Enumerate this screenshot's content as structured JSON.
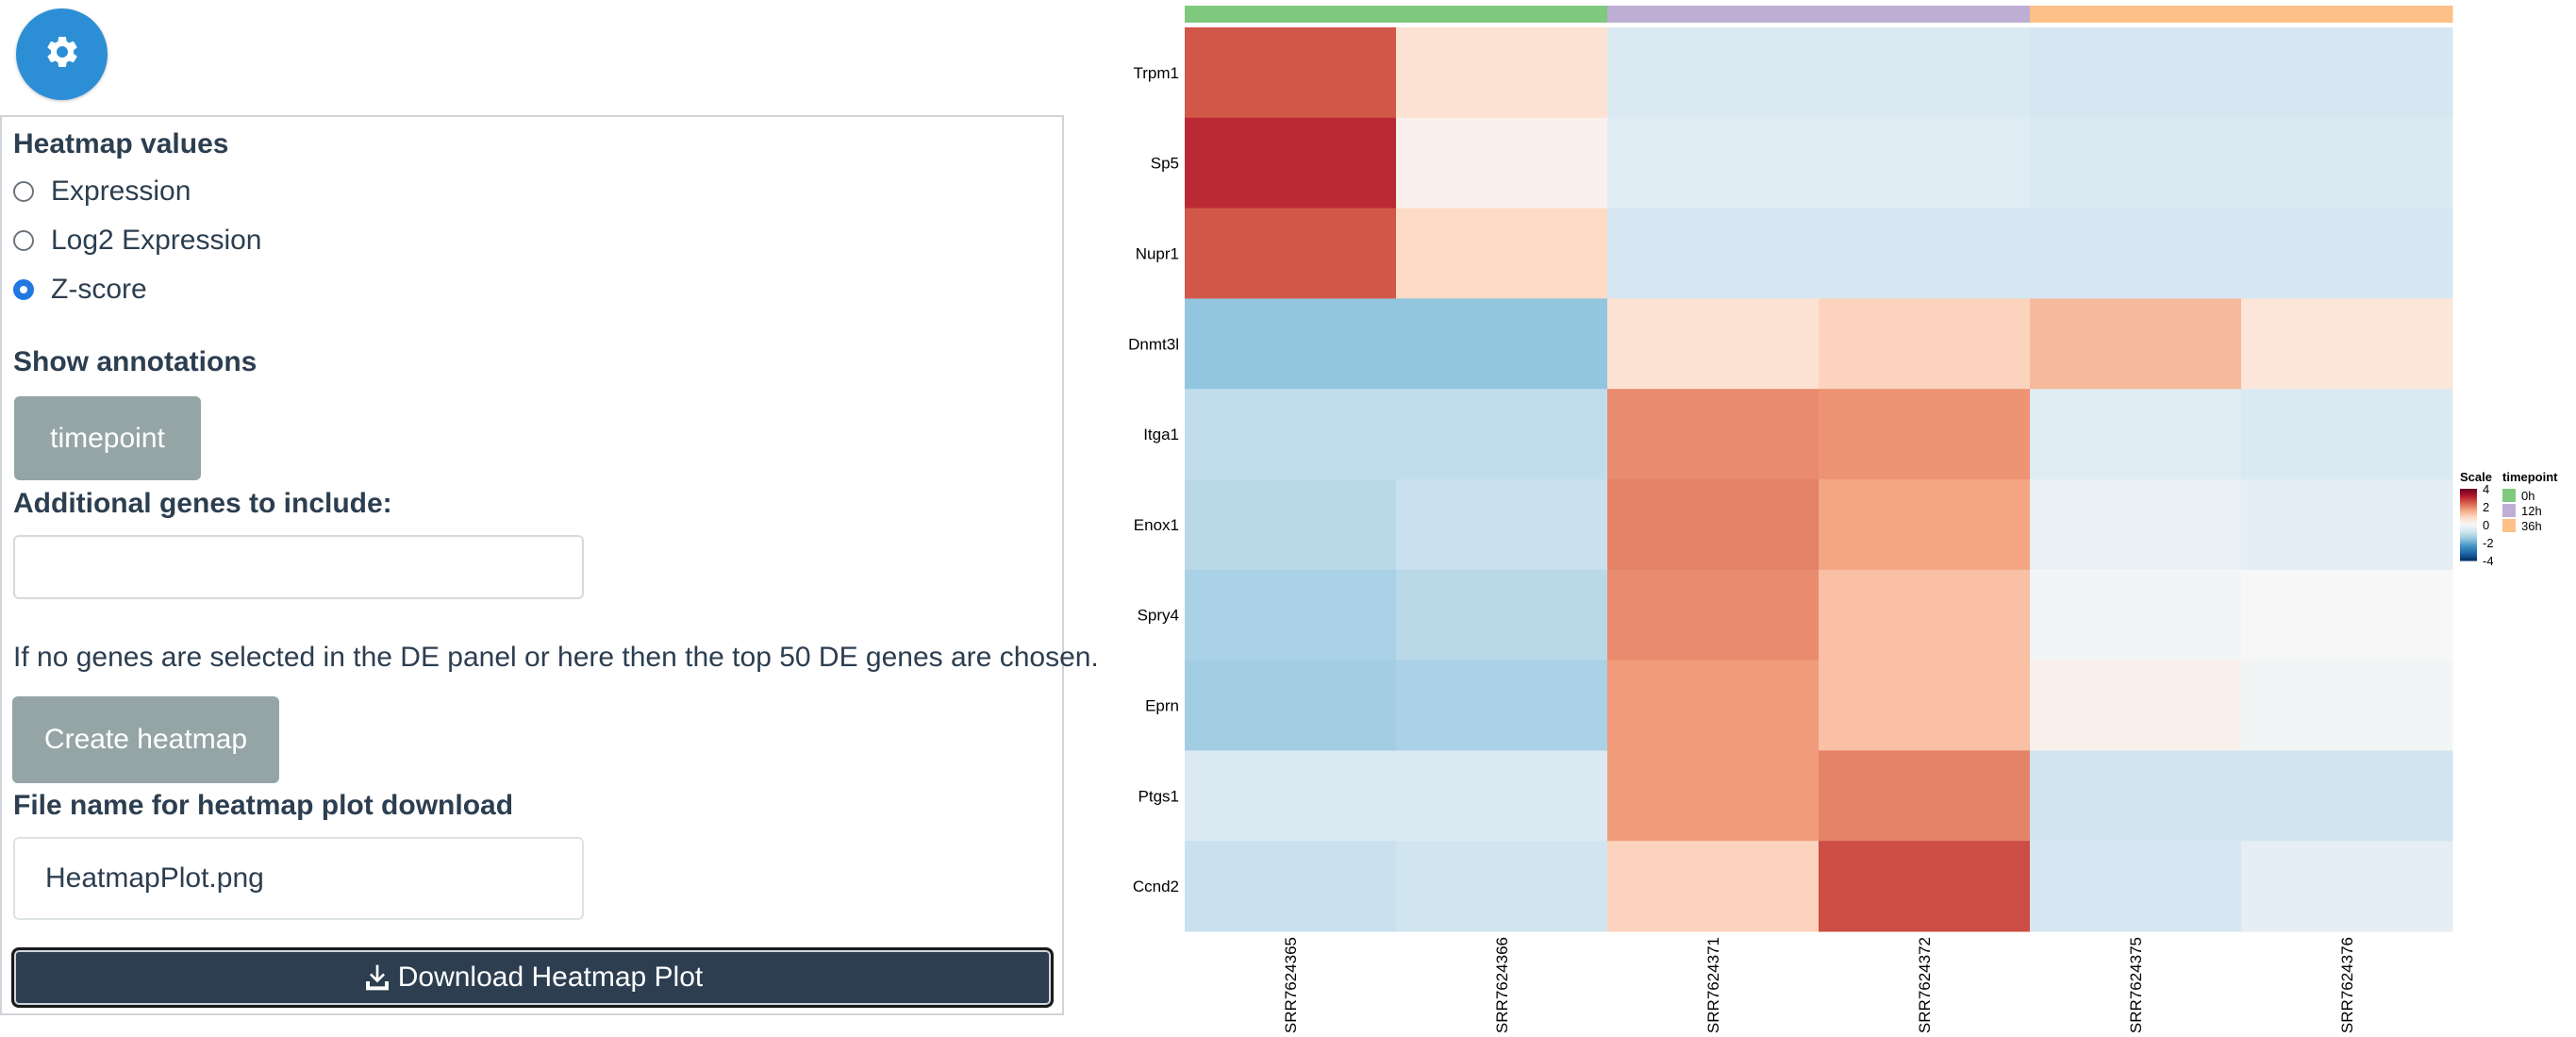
{
  "settings_button": {
    "icon": "gear-icon"
  },
  "controls": {
    "heatmap_values": {
      "title": "Heatmap values",
      "options": [
        {
          "label": "Expression",
          "checked": false
        },
        {
          "label": "Log2 Expression",
          "checked": false
        },
        {
          "label": "Z-score",
          "checked": true
        }
      ]
    },
    "annotations": {
      "title": "Show annotations",
      "button_label": "timepoint"
    },
    "additional_genes": {
      "label": "Additional genes to include:",
      "value": ""
    },
    "help_text": "If no genes are selected in the DE panel or here then the top 50 DE genes are chosen.",
    "create_button_label": "Create heatmap",
    "file_name": {
      "label": "File name for heatmap plot download",
      "value": "HeatmapPlot.png"
    },
    "download_button_label": "Download Heatmap Plot",
    "download_icon": "download-icon"
  },
  "chart_data": {
    "type": "heatmap",
    "rows": [
      "Trpm1",
      "Sp5",
      "Nupr1",
      "Dnmt3l",
      "Itga1",
      "Enox1",
      "Spry4",
      "Eprn",
      "Ptgs1",
      "Ccnd2"
    ],
    "columns": [
      "SRR7624365",
      "SRR7624366",
      "SRR7624371",
      "SRR7624372",
      "SRR7624375",
      "SRR7624376"
    ],
    "column_annotation": {
      "name": "timepoint",
      "values": [
        "0h",
        "0h",
        "12h",
        "12h",
        "36h",
        "36h"
      ],
      "colors": {
        "0h": "#7fc97f",
        "12h": "#beaed4",
        "36h": "#fdc086"
      }
    },
    "values": [
      [
        2.5,
        0.6,
        -0.6,
        -0.6,
        -0.7,
        -0.7
      ],
      [
        3.0,
        0.2,
        -0.5,
        -0.5,
        -0.6,
        -0.6
      ],
      [
        2.5,
        0.8,
        -0.7,
        -0.7,
        -0.7,
        -0.7
      ],
      [
        -1.6,
        -1.6,
        0.6,
        0.9,
        1.3,
        0.5
      ],
      [
        -1.0,
        -1.0,
        1.9,
        1.8,
        -0.5,
        -0.6
      ],
      [
        -1.1,
        -0.9,
        2.0,
        1.6,
        -0.3,
        -0.4
      ],
      [
        -1.3,
        -1.1,
        1.9,
        1.2,
        -0.1,
        0.0
      ],
      [
        -1.4,
        -1.3,
        1.7,
        1.2,
        0.2,
        -0.1
      ],
      [
        -0.6,
        -0.6,
        1.7,
        2.0,
        -0.8,
        -0.8
      ],
      [
        -0.9,
        -0.8,
        0.9,
        2.6,
        -0.7,
        -0.4
      ]
    ],
    "legend_scale": {
      "title": "Scale",
      "ticks": [
        4,
        2,
        0,
        -2,
        -4
      ],
      "range": [
        -4,
        4
      ],
      "colors": [
        "#053061",
        "#2166ac",
        "#4393c3",
        "#92c5de",
        "#d1e5f0",
        "#f7f7f7",
        "#fddbc7",
        "#f4a582",
        "#d6604d",
        "#b2182b",
        "#67001f"
      ]
    },
    "legend_annotation": {
      "title": "timepoint",
      "entries": [
        "0h",
        "12h",
        "36h"
      ]
    }
  }
}
